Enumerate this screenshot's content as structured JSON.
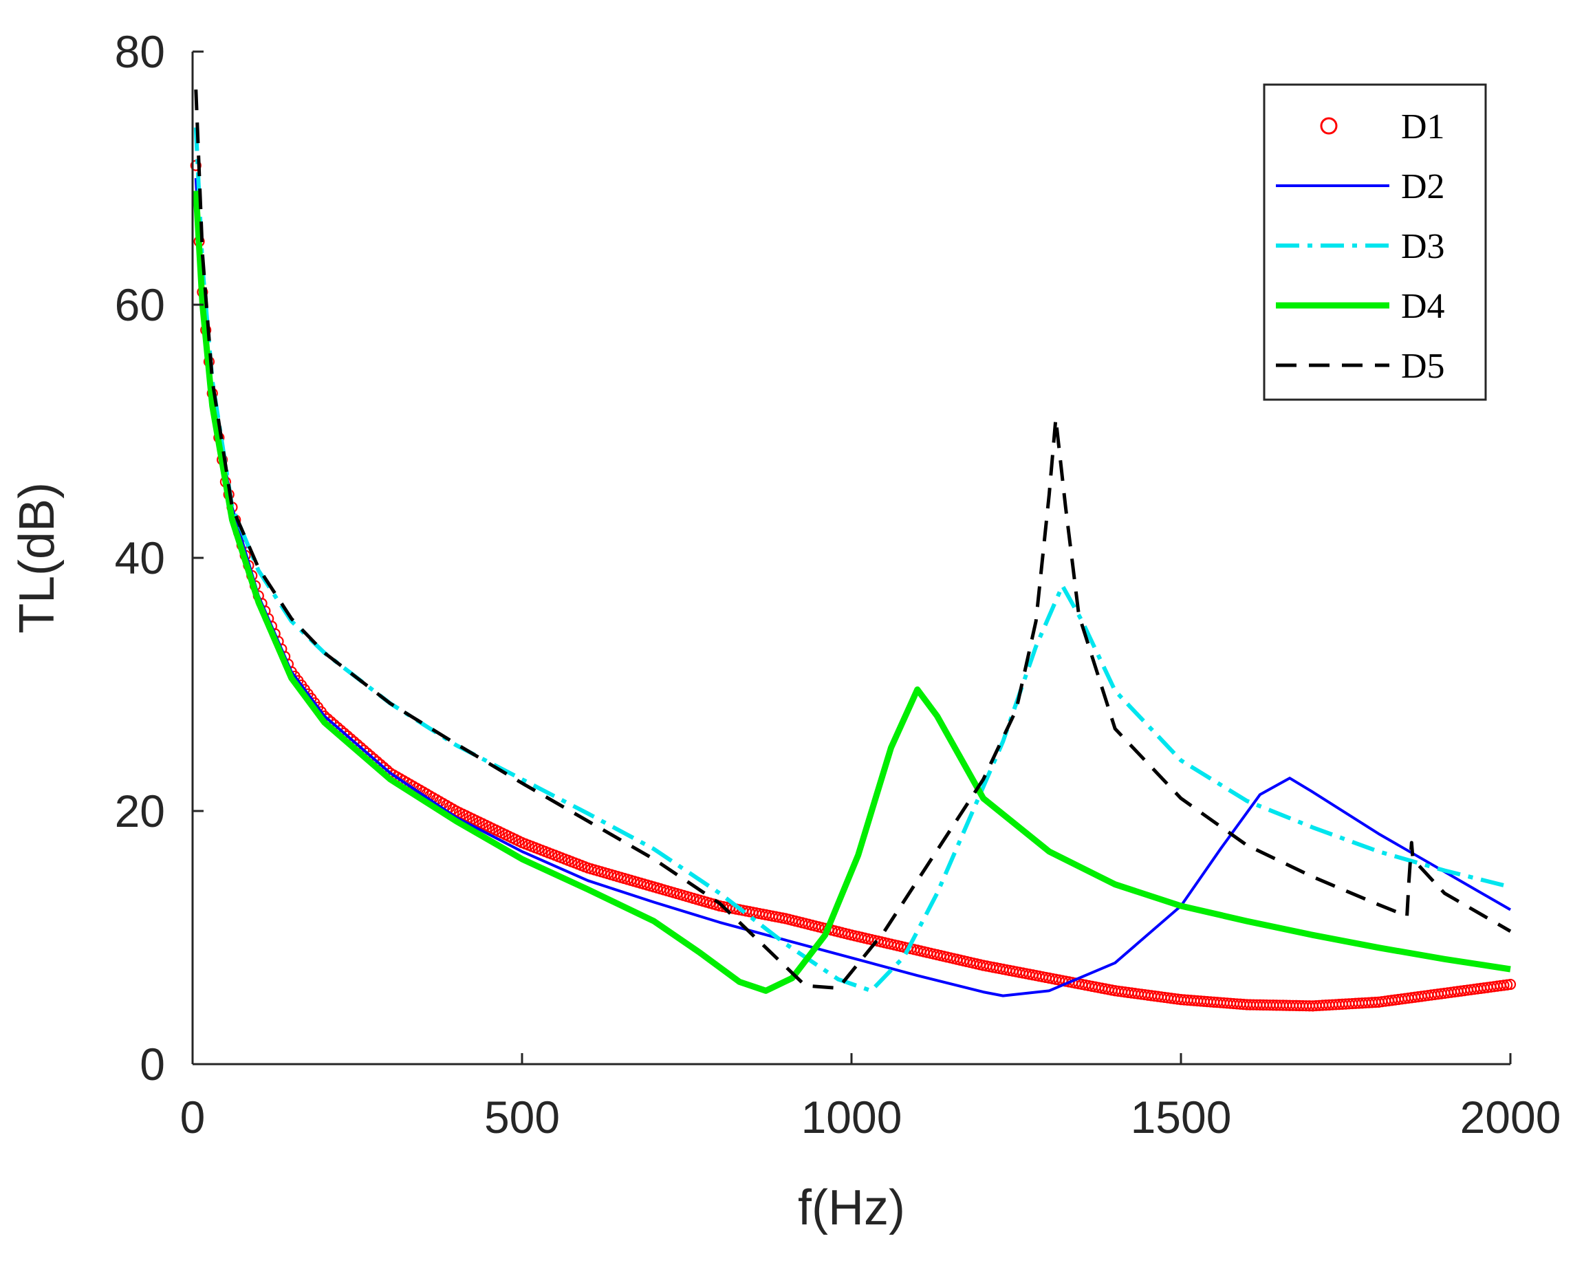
{
  "chart_data": {
    "type": "line",
    "xlabel": "f(Hz)",
    "ylabel": "TL(dB)",
    "xlim": [
      0,
      2000
    ],
    "ylim": [
      0,
      80
    ],
    "xticks": [
      0,
      500,
      1000,
      1500,
      2000
    ],
    "yticks": [
      0,
      20,
      40,
      60,
      80
    ],
    "grid": false,
    "legend_position": "top-right",
    "series": [
      {
        "name": "D1",
        "color": "#ff0000",
        "style": "circle-markers",
        "points": [
          [
            5,
            71
          ],
          [
            10,
            65
          ],
          [
            15,
            61
          ],
          [
            20,
            58
          ],
          [
            30,
            53
          ],
          [
            50,
            46
          ],
          [
            75,
            41
          ],
          [
            100,
            37
          ],
          [
            150,
            31
          ],
          [
            200,
            27.5
          ],
          [
            300,
            23
          ],
          [
            400,
            20
          ],
          [
            500,
            17.5
          ],
          [
            600,
            15.5
          ],
          [
            700,
            14
          ],
          [
            800,
            12.5
          ],
          [
            900,
            11.5
          ],
          [
            1000,
            10.2
          ],
          [
            1100,
            9
          ],
          [
            1200,
            7.8
          ],
          [
            1300,
            6.8
          ],
          [
            1400,
            5.8
          ],
          [
            1500,
            5.1
          ],
          [
            1600,
            4.7
          ],
          [
            1700,
            4.6
          ],
          [
            1800,
            4.9
          ],
          [
            1900,
            5.6
          ],
          [
            2000,
            6.3
          ]
        ]
      },
      {
        "name": "D2",
        "color": "#0000ff",
        "style": "solid",
        "points": [
          [
            5,
            70
          ],
          [
            15,
            61
          ],
          [
            30,
            53
          ],
          [
            60,
            44
          ],
          [
            100,
            37
          ],
          [
            150,
            31
          ],
          [
            200,
            27.5
          ],
          [
            300,
            23
          ],
          [
            400,
            19.5
          ],
          [
            500,
            16.8
          ],
          [
            600,
            14.5
          ],
          [
            700,
            12.8
          ],
          [
            800,
            11.2
          ],
          [
            900,
            9.8
          ],
          [
            1000,
            8.4
          ],
          [
            1100,
            7
          ],
          [
            1200,
            5.7
          ],
          [
            1230,
            5.4
          ],
          [
            1300,
            5.8
          ],
          [
            1400,
            8
          ],
          [
            1500,
            12.5
          ],
          [
            1560,
            17
          ],
          [
            1620,
            21.3
          ],
          [
            1665,
            22.6
          ],
          [
            1700,
            21.5
          ],
          [
            1800,
            18.2
          ],
          [
            1900,
            15.2
          ],
          [
            2000,
            12.2
          ]
        ]
      },
      {
        "name": "D3",
        "color": "#00e5ee",
        "style": "dash-dot",
        "points": [
          [
            5,
            74
          ],
          [
            15,
            63
          ],
          [
            30,
            54
          ],
          [
            60,
            44
          ],
          [
            100,
            39
          ],
          [
            150,
            35
          ],
          [
            200,
            32.5
          ],
          [
            300,
            28.5
          ],
          [
            400,
            25.2
          ],
          [
            500,
            22.5
          ],
          [
            600,
            19.8
          ],
          [
            700,
            17
          ],
          [
            800,
            13.5
          ],
          [
            900,
            9.5
          ],
          [
            980,
            6.7
          ],
          [
            1030,
            5.8
          ],
          [
            1080,
            8.5
          ],
          [
            1130,
            13.5
          ],
          [
            1180,
            19.5
          ],
          [
            1230,
            25.5
          ],
          [
            1280,
            33
          ],
          [
            1320,
            37.8
          ],
          [
            1350,
            35
          ],
          [
            1400,
            29.5
          ],
          [
            1500,
            24
          ],
          [
            1600,
            20.8
          ],
          [
            1700,
            18.7
          ],
          [
            1800,
            16.8
          ],
          [
            1900,
            15.3
          ],
          [
            2000,
            14
          ]
        ]
      },
      {
        "name": "D4",
        "color": "#00ee00",
        "style": "dotted",
        "points": [
          [
            5,
            69
          ],
          [
            15,
            60
          ],
          [
            30,
            52
          ],
          [
            60,
            43
          ],
          [
            100,
            36.5
          ],
          [
            150,
            30.5
          ],
          [
            200,
            27
          ],
          [
            300,
            22.5
          ],
          [
            400,
            19.2
          ],
          [
            500,
            16.2
          ],
          [
            600,
            13.8
          ],
          [
            700,
            11.3
          ],
          [
            770,
            8.8
          ],
          [
            830,
            6.5
          ],
          [
            870,
            5.8
          ],
          [
            910,
            6.8
          ],
          [
            960,
            10.2
          ],
          [
            1010,
            16.5
          ],
          [
            1060,
            25
          ],
          [
            1100,
            29.6
          ],
          [
            1130,
            27.5
          ],
          [
            1200,
            21
          ],
          [
            1300,
            16.8
          ],
          [
            1400,
            14.2
          ],
          [
            1500,
            12.5
          ],
          [
            1600,
            11.3
          ],
          [
            1700,
            10.2
          ],
          [
            1800,
            9.2
          ],
          [
            1900,
            8.3
          ],
          [
            2000,
            7.5
          ]
        ]
      },
      {
        "name": "D5",
        "color": "#000000",
        "style": "dashed",
        "points": [
          [
            5,
            77
          ],
          [
            15,
            64
          ],
          [
            30,
            54
          ],
          [
            60,
            44
          ],
          [
            100,
            39.2
          ],
          [
            150,
            35.2
          ],
          [
            200,
            32.5
          ],
          [
            300,
            28.5
          ],
          [
            400,
            25.3
          ],
          [
            500,
            22.2
          ],
          [
            600,
            19.2
          ],
          [
            700,
            16.2
          ],
          [
            800,
            12.7
          ],
          [
            870,
            9.2
          ],
          [
            930,
            6.2
          ],
          [
            980,
            6
          ],
          [
            1050,
            10.5
          ],
          [
            1100,
            14.5
          ],
          [
            1200,
            22.5
          ],
          [
            1250,
            28
          ],
          [
            1280,
            35
          ],
          [
            1300,
            45
          ],
          [
            1310,
            51
          ],
          [
            1325,
            44
          ],
          [
            1345,
            35.5
          ],
          [
            1400,
            26.5
          ],
          [
            1500,
            21
          ],
          [
            1600,
            17.3
          ],
          [
            1700,
            14.8
          ],
          [
            1800,
            12.6
          ],
          [
            1843,
            11.7
          ],
          [
            1846,
            14.5
          ],
          [
            1850,
            17.5
          ],
          [
            1852,
            16.2
          ],
          [
            1900,
            13.5
          ],
          [
            2000,
            10.5
          ]
        ]
      }
    ]
  }
}
